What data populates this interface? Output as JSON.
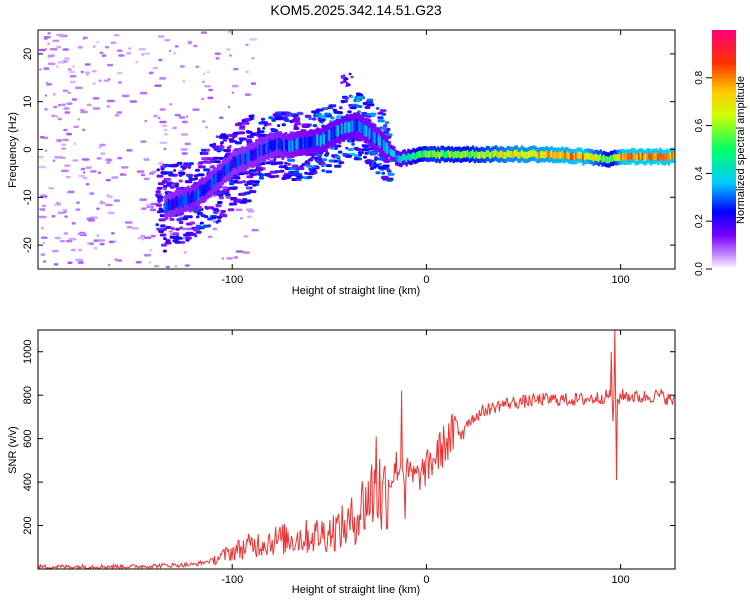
{
  "figure_title": "KOM5.2025.342.14.51.G23",
  "chart_data": [
    {
      "type": "heatmap",
      "title": "KOM5.2025.342.14.51.G23",
      "xlabel": "Height of straight line (km)",
      "ylabel": "Frequency (Hz)",
      "xlim": [
        -200,
        128
      ],
      "ylim": [
        -25,
        25
      ],
      "xticks": [
        -100,
        0,
        100
      ],
      "yticks": [
        -20,
        -10,
        0,
        10,
        20
      ],
      "colorbar": {
        "label": "Normalized spectral amplitude",
        "range": [
          0,
          1
        ],
        "ticks": [
          "0.0",
          "0.2",
          "0.4",
          "0.6",
          "0.8"
        ],
        "colors": [
          "#ffffff",
          "#cc99ff",
          "#7a00ff",
          "#0000ff",
          "#00ccff",
          "#00ff66",
          "#ccff00",
          "#ffcc00",
          "#ff3300",
          "#ff0077"
        ]
      },
      "trace": {
        "description_points_x_km": [
          -135,
          -120,
          -100,
          -80,
          -65,
          -55,
          -40,
          -35,
          -25,
          -15,
          0,
          20,
          40,
          60,
          80,
          95,
          100,
          128
        ],
        "center_freq_hz": [
          -12,
          -10,
          -3,
          1,
          1,
          2,
          5,
          5,
          2,
          -2,
          -1,
          -1,
          -1,
          -1,
          -1.5,
          -2,
          -1.5,
          -1.5
        ],
        "amplitude": [
          0.25,
          0.28,
          0.25,
          0.27,
          0.3,
          0.32,
          0.35,
          0.32,
          0.3,
          0.35,
          0.6,
          0.55,
          0.7,
          0.75,
          0.8,
          0.5,
          0.8,
          0.8
        ]
      },
      "noise_x_max_km": -130,
      "blob": {
        "x_km": -42,
        "freq_hz": 15
      }
    },
    {
      "type": "line",
      "xlabel": "Height of straight line (km)",
      "ylabel": "SNR (v/v)",
      "xlim": [
        -200,
        128
      ],
      "ylim": [
        0,
        1100
      ],
      "xticks": [
        -100,
        0,
        100
      ],
      "yticks": [
        200,
        400,
        600,
        800,
        1000
      ],
      "color": "#ee3333",
      "series": [
        {
          "name": "SNR",
          "x": [
            -200,
            -150,
            -120,
            -110,
            -100,
            -90,
            -80,
            -70,
            -60,
            -50,
            -40,
            -35,
            -30,
            -25,
            -22,
            -18,
            -15,
            -10,
            -5,
            0,
            10,
            20,
            30,
            40,
            60,
            80,
            90,
            95,
            98,
            100,
            110,
            120,
            128
          ],
          "y": [
            10,
            12,
            20,
            40,
            80,
            110,
            130,
            140,
            150,
            170,
            200,
            260,
            330,
            380,
            350,
            420,
            480,
            440,
            420,
            460,
            580,
            670,
            730,
            760,
            780,
            780,
            790,
            800,
            760,
            800,
            790,
            800,
            770
          ]
        }
      ],
      "spikes": [
        {
          "x": -26,
          "y": 610
        },
        {
          "x": -23,
          "y": 180
        },
        {
          "x": -13,
          "y": 820
        },
        {
          "x": -11,
          "y": 230
        },
        {
          "x": 95,
          "y": 1000
        },
        {
          "x": 96,
          "y": 680
        },
        {
          "x": 97,
          "y": 1100
        },
        {
          "x": 98,
          "y": 410
        }
      ]
    }
  ]
}
